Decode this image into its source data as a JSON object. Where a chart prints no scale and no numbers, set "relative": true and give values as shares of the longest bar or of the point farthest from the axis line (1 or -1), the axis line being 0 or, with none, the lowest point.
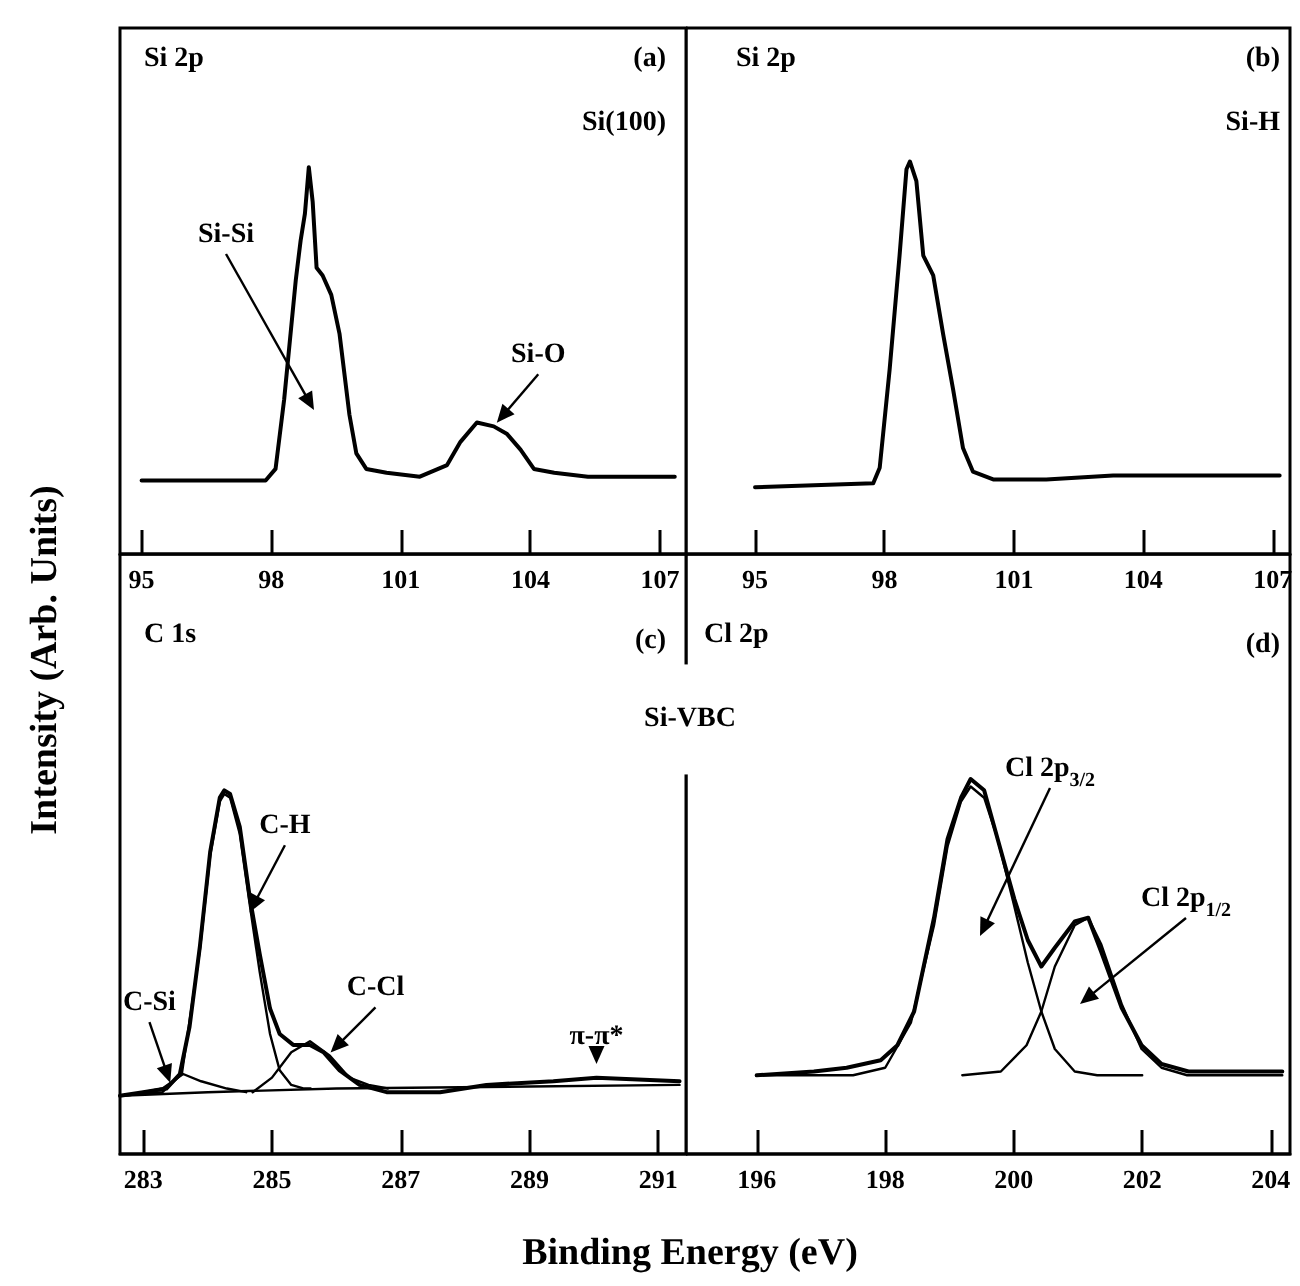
{
  "chart_data": [
    {
      "type": "line",
      "title": "Si 2p",
      "ylabel": "Intensity (Arb. Units)",
      "relative": true,
      "xlim": [
        94.5,
        107.6
      ],
      "xticks": [
        95,
        98,
        101,
        104,
        107
      ],
      "annotations": [
        "(a)",
        "Si(100)",
        "Si-Si",
        {
          "text": "Si-O",
          "x": 103.07,
          "y": 0.32
        }
      ],
      "series": [
        {
          "color": "#000000",
          "x": [
            95,
            97.87,
            98.1,
            98.3,
            98.57,
            98.68,
            98.78,
            98.87,
            98.96,
            99.05,
            99.19,
            99.39,
            99.58,
            99.81,
            99.97,
            100.2,
            100.67,
            101.44,
            102.07,
            102.38,
            102.76,
            103.15,
            103.46,
            103.77,
            104.08,
            104.55,
            105.33,
            106.26,
            107.34
          ],
          "values": [
            0.19,
            0.19,
            0.22,
            0.4,
            0.71,
            0.81,
            0.88,
            1,
            0.91,
            0.74,
            0.72,
            0.67,
            0.57,
            0.36,
            0.26,
            0.22,
            0.21,
            0.2,
            0.23,
            0.29,
            0.34,
            0.33,
            0.31,
            0.27,
            0.22,
            0.21,
            0.2,
            0.2,
            0.2
          ]
        }
      ]
    },
    {
      "type": "line",
      "title": "Si 2p",
      "relative": true,
      "xlim": [
        93.4,
        107.4
      ],
      "xticks": [
        95,
        98,
        101,
        104,
        107
      ],
      "annotations": [
        "(b)",
        "Si-H"
      ],
      "series": [
        {
          "color": "#000000",
          "x": [
            95,
            97.74,
            97.89,
            98.12,
            98.35,
            98.51,
            98.59,
            98.74,
            98.9,
            99.13,
            99.36,
            99.59,
            99.82,
            100.05,
            100.52,
            101.75,
            103.3,
            104.85,
            106.39,
            107.16
          ],
          "values": [
            0.17,
            0.18,
            0.22,
            0.47,
            0.76,
            0.98,
            1,
            0.95,
            0.76,
            0.71,
            0.56,
            0.42,
            0.27,
            0.21,
            0.19,
            0.19,
            0.2,
            0.2,
            0.2,
            0.2
          ]
        }
      ]
    },
    {
      "type": "line",
      "title": "C 1s",
      "xlabel": "Binding Energy (eV)",
      "relative": true,
      "xlim": [
        282.64,
        291.43
      ],
      "xticks": [
        283,
        285,
        287,
        289,
        291
      ],
      "annotations": [
        "(c)",
        "Si-VBC",
        {
          "text": "C-H",
          "x": 284.58,
          "y": 0.64
        },
        {
          "text": "C-Si",
          "x": 283.47,
          "y": 0.17
        },
        {
          "text": "C-Cl",
          "x": 285.8,
          "y": 0.26
        },
        {
          "text": "π-π*",
          "x": 290.04,
          "y": 0.22
        }
      ],
      "series": [
        {
          "color": "#000000",
          "x": [
            282.64,
            283,
            283.36,
            283.57,
            283.72,
            283.88,
            284.04,
            284.19,
            284.26,
            284.35,
            284.5,
            284.66,
            284.81,
            284.97,
            285.12,
            285.33,
            285.59,
            285.8,
            286.05,
            286.36,
            286.78,
            287.61,
            288.33,
            289.37,
            290.04,
            291.33
          ],
          "values": [
            0.16,
            0.17,
            0.18,
            0.22,
            0.35,
            0.57,
            0.83,
            0.98,
            1,
            0.99,
            0.9,
            0.7,
            0.55,
            0.4,
            0.33,
            0.3,
            0.3,
            0.28,
            0.23,
            0.19,
            0.17,
            0.17,
            0.19,
            0.2,
            0.21,
            0.2
          ]
        },
        {
          "color": "#000000",
          "x": [
            282.64,
            283.3,
            283.6,
            283.88,
            284.04,
            284.19,
            284.26,
            284.35,
            284.5,
            284.66,
            284.81,
            284.97,
            285.12,
            285.3,
            285.5,
            285.6
          ],
          "values": [
            0.16,
            0.17,
            0.22,
            0.56,
            0.82,
            0.97,
            0.99,
            0.98,
            0.88,
            0.68,
            0.5,
            0.33,
            0.23,
            0.19,
            0.18,
            0.18
          ]
        },
        {
          "color": "#000000",
          "x": [
            283,
            283.3,
            283.62,
            283.9,
            284.3,
            284.6
          ],
          "values": [
            0.17,
            0.18,
            0.22,
            0.2,
            0.18,
            0.17
          ]
        },
        {
          "color": "#000000",
          "x": [
            284.7,
            285,
            285.3,
            285.59,
            285.9,
            286.2,
            286.5,
            286.8
          ],
          "values": [
            0.17,
            0.21,
            0.28,
            0.31,
            0.27,
            0.21,
            0.19,
            0.18
          ]
        },
        {
          "color": "#000000",
          "x": [
            282.64,
            284,
            286,
            291.33
          ],
          "values": [
            0.16,
            0.17,
            0.18,
            0.19
          ]
        }
      ]
    },
    {
      "type": "line",
      "title": "Cl 2p",
      "relative": true,
      "xlim": [
        194.9,
        204.3
      ],
      "xticks": [
        196,
        198,
        200,
        202,
        204
      ],
      "annotations": [
        "(d)",
        "Cl 2p$_{3/2}$",
        "Cl 2p$_{1/2}$"
      ],
      "series": [
        {
          "color": "#000000",
          "x": [
            196,
            196.89,
            197.4,
            197.93,
            198.19,
            198.45,
            198.76,
            198.97,
            199.18,
            199.33,
            199.54,
            199.75,
            200.01,
            200.22,
            200.43,
            200.64,
            200.95,
            201.16,
            201.36,
            201.68,
            201.99,
            202.3,
            202.72,
            203.34,
            204.18
          ],
          "values": [
            0.21,
            0.22,
            0.23,
            0.25,
            0.29,
            0.38,
            0.63,
            0.84,
            0.95,
            1,
            0.97,
            0.84,
            0.68,
            0.57,
            0.5,
            0.55,
            0.62,
            0.63,
            0.54,
            0.39,
            0.29,
            0.24,
            0.22,
            0.22,
            0.22
          ]
        },
        {
          "color": "#000000",
          "x": [
            196,
            197.5,
            198,
            198.4,
            198.76,
            198.97,
            199.18,
            199.33,
            199.54,
            199.75,
            200.01,
            200.22,
            200.43,
            200.64,
            200.95,
            201.3,
            202
          ],
          "values": [
            0.21,
            0.21,
            0.23,
            0.35,
            0.61,
            0.82,
            0.94,
            0.98,
            0.95,
            0.84,
            0.66,
            0.51,
            0.38,
            0.28,
            0.22,
            0.21,
            0.21
          ]
        },
        {
          "color": "#000000",
          "x": [
            199.2,
            199.8,
            200.2,
            200.43,
            200.64,
            200.95,
            201.16,
            201.36,
            201.68,
            201.99,
            202.3,
            202.7,
            204.18
          ],
          "values": [
            0.21,
            0.22,
            0.29,
            0.38,
            0.5,
            0.61,
            0.63,
            0.56,
            0.4,
            0.28,
            0.23,
            0.21,
            0.21
          ]
        }
      ]
    }
  ]
}
